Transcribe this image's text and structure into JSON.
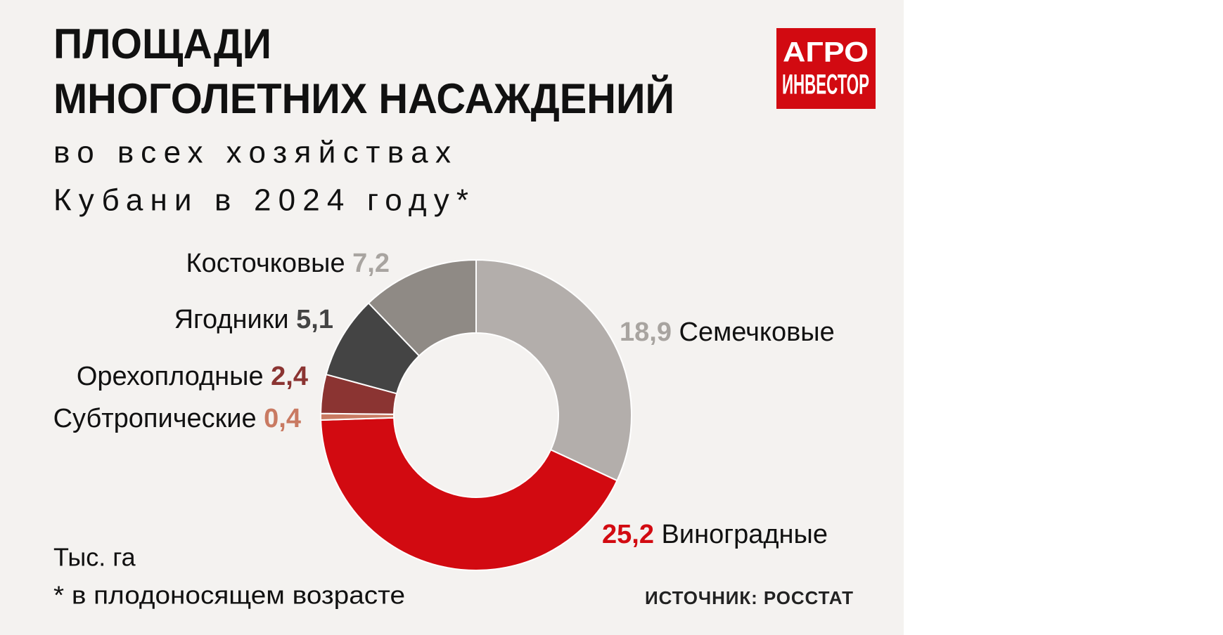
{
  "chart_data": {
    "type": "pie",
    "donut": true,
    "title": [
      "ПЛОЩАДИ",
      "МНОГОЛЕТНИХ НАСАЖДЕНИЙ"
    ],
    "subtitle": [
      "во всех хозяйствах",
      "Кубани в 2024 году*"
    ],
    "categories": [
      "Семечковые",
      "Виноградные",
      "Субтропические",
      "Орехоплодные",
      "Ягодники",
      "Косточковые"
    ],
    "values": [
      18.9,
      25.2,
      0.4,
      2.4,
      5.1,
      7.2
    ],
    "value_labels": [
      "18,9",
      "25,2",
      "0,4",
      "2,4",
      "5,1",
      "7,2"
    ],
    "colors": [
      "#b3aeab",
      "#d20a11",
      "#c97a62",
      "#8b3432",
      "#444444",
      "#8f8a85"
    ],
    "label_colors": [
      "#a8a4a0",
      "#d20a11",
      "#c97a62",
      "#8b3432",
      "#444444",
      "#a8a4a0"
    ],
    "units": "Тыс. га",
    "footnote": "* в плодоносящем возрасте",
    "source": "ИСТОЧНИК: РОССТАТ",
    "logo": [
      "АГРО",
      "ИНВЕСТОР"
    ]
  }
}
